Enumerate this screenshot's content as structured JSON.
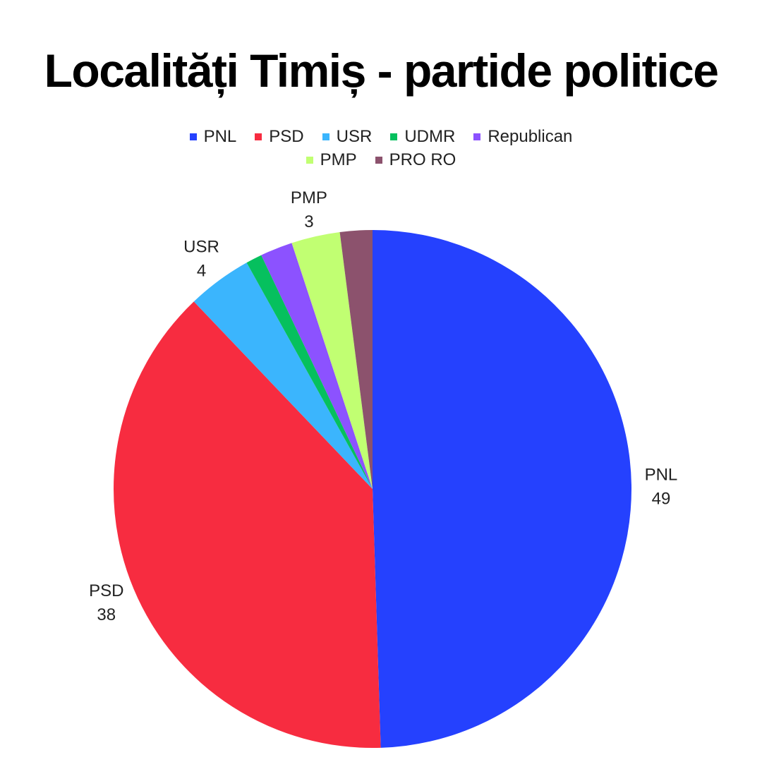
{
  "chart_data": {
    "type": "pie",
    "title": "Localități Timiș - partide politice",
    "legend_position": "top",
    "slices": [
      {
        "name": "PNL",
        "value": 49,
        "color": "#2541fe",
        "show_label": true
      },
      {
        "name": "PSD",
        "value": 38,
        "color": "#f72c40",
        "show_label": true
      },
      {
        "name": "USR",
        "value": 4,
        "color": "#3bb5fd",
        "show_label": true
      },
      {
        "name": "UDMR",
        "value": 1,
        "color": "#06c05e",
        "show_label": false
      },
      {
        "name": "Republican",
        "value": 2,
        "color": "#8c52ff",
        "show_label": false
      },
      {
        "name": "PMP",
        "value": 3,
        "color": "#c1ff72",
        "show_label": true
      },
      {
        "name": "PRO RO",
        "value": 2,
        "color": "#8c526d",
        "show_label": false
      }
    ]
  }
}
